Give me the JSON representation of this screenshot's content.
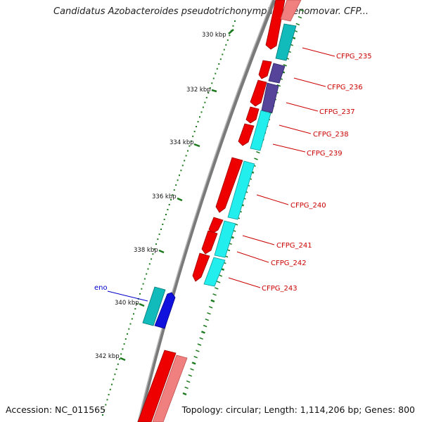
{
  "title": "Candidatus Azobacteroides pseudotrichonymphae genomovar. CFP...",
  "footer": {
    "accession": "Accession: NC_011565",
    "summary": "Topology: circular; Length: 1,114,206 bp; Genes: 800"
  },
  "colors": {
    "backbone": "#888888",
    "tick": "#1e7a1e",
    "label_red": "#cc0000",
    "label_blue": "#0000cc",
    "gene_red": "#ee0000",
    "gene_pink": "#f08080",
    "gene_cyan": "#22eeee",
    "gene_teal": "#11bbbb",
    "gene_purple": "#554499",
    "gene_blue": "#1111dd"
  },
  "kbp_labels": [
    "330 kbp",
    "332 kbp",
    "334 kbp",
    "336 kbp",
    "338 kbp",
    "340 kbp",
    "342 kbp"
  ],
  "gene_labels": [
    {
      "id": "CFPG_235",
      "text": "CFPG_235"
    },
    {
      "id": "CFPG_236",
      "text": "CFPG_236"
    },
    {
      "id": "CFPG_237",
      "text": "CFPG_237"
    },
    {
      "id": "CFPG_238",
      "text": "CFPG_238"
    },
    {
      "id": "CFPG_239",
      "text": "CFPG_239"
    },
    {
      "id": "CFPG_240",
      "text": "CFPG_240"
    },
    {
      "id": "CFPG_241",
      "text": "CFPG_241"
    },
    {
      "id": "CFPG_242",
      "text": "CFPG_242"
    },
    {
      "id": "CFPG_243",
      "text": "CFPG_243"
    },
    {
      "id": "eno",
      "text": "eno"
    }
  ]
}
